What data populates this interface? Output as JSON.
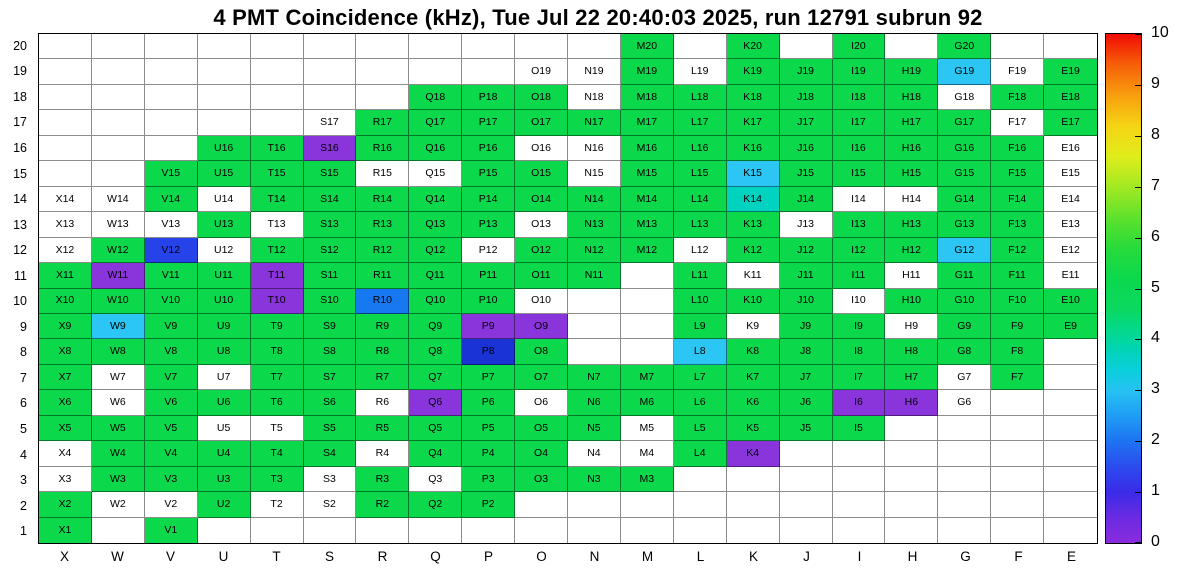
{
  "title": "4 PMT Coincidence (kHz), Tue Jul 22 20:40:03 2025, run 12791 subrun 92",
  "chart_data": {
    "type": "heatmap",
    "title": "4 PMT Coincidence (kHz), Tue Jul 22 20:40:03 2025, run 12791 subrun 92",
    "x_categories": [
      "X",
      "W",
      "V",
      "U",
      "T",
      "S",
      "R",
      "Q",
      "P",
      "O",
      "N",
      "M",
      "L",
      "K",
      "J",
      "I",
      "H",
      "G",
      "F",
      "E"
    ],
    "y_categories": [
      "20",
      "19",
      "18",
      "17",
      "16",
      "15",
      "14",
      "13",
      "12",
      "11",
      "10",
      "9",
      "8",
      "7",
      "6",
      "5",
      "4",
      "3",
      "2",
      "1"
    ],
    "zlim": [
      0,
      10
    ],
    "colorbar_ticks": [
      "10",
      "9",
      "8",
      "7",
      "6",
      "5",
      "4",
      "3",
      "2",
      "1",
      "0"
    ],
    "grid": true,
    "legend_position": "right-colorbar",
    "palette": {
      "g": "#0CD84C",
      "w": "#FFFFFF",
      "c": "#2BC6F4",
      "t": "#00D2C0",
      "lb": "#1779F2",
      "b": "#2543E9",
      "db": "#1A33D4",
      "p": "#8A35DC"
    },
    "palette_value_estimate_khz": {
      "g": 5.0,
      "t": 3.6,
      "c": 2.9,
      "lb": 2.1,
      "b": 1.5,
      "db": 1.2,
      "p": 0.5,
      "w": 0
    },
    "cell_format": "LABEL|color_key (empty string = no channel present)",
    "cells": {
      "20": [
        "",
        "",
        "",
        "",
        "",
        "",
        "",
        "",
        "",
        "",
        "",
        "M20|g",
        "",
        "K20|g",
        "",
        "I20|g",
        "",
        "G20|g",
        "",
        ""
      ],
      "19": [
        "",
        "",
        "",
        "",
        "",
        "",
        "",
        "",
        "",
        "O19|w",
        "N19|w",
        "M19|g",
        "L19|w",
        "K19|g",
        "J19|g",
        "I19|g",
        "H19|g",
        "G19|c",
        "F19|w",
        "E19|g"
      ],
      "18": [
        "",
        "",
        "",
        "",
        "",
        "",
        "",
        "Q18|g",
        "P18|g",
        "O18|g",
        "N18|w",
        "M18|g",
        "L18|g",
        "K18|g",
        "J18|g",
        "I18|g",
        "H18|g",
        "G18|w",
        "F18|g",
        "E18|g"
      ],
      "17": [
        "",
        "",
        "",
        "",
        "",
        "S17|w",
        "R17|g",
        "Q17|g",
        "P17|g",
        "O17|g",
        "N17|g",
        "M17|g",
        "L17|g",
        "K17|g",
        "J17|g",
        "I17|g",
        "H17|g",
        "G17|g",
        "F17|w",
        "E17|g"
      ],
      "16": [
        "",
        "",
        "",
        "U16|g",
        "T16|g",
        "S16|p",
        "R16|g",
        "Q16|g",
        "P16|g",
        "O16|w",
        "N16|w",
        "M16|g",
        "L16|g",
        "K16|g",
        "J16|g",
        "I16|g",
        "H16|g",
        "G16|g",
        "F16|g",
        "E16|w"
      ],
      "15": [
        "",
        "",
        "V15|g",
        "U15|g",
        "T15|g",
        "S15|g",
        "R15|w",
        "Q15|w",
        "P15|g",
        "O15|g",
        "N15|w",
        "M15|g",
        "L15|g",
        "K15|c",
        "J15|g",
        "I15|g",
        "H15|g",
        "G15|g",
        "F15|g",
        "E15|w"
      ],
      "14": [
        "X14|w",
        "W14|w",
        "V14|g",
        "U14|w",
        "T14|g",
        "S14|g",
        "R14|g",
        "Q14|g",
        "P14|g",
        "O14|g",
        "N14|g",
        "M14|g",
        "L14|g",
        "K14|t",
        "J14|g",
        "I14|w",
        "H14|w",
        "G14|g",
        "F14|g",
        "E14|w"
      ],
      "13": [
        "X13|w",
        "W13|w",
        "V13|w",
        "U13|g",
        "T13|w",
        "S13|g",
        "R13|g",
        "Q13|g",
        "P13|g",
        "O13|w",
        "N13|g",
        "M13|g",
        "L13|g",
        "K13|g",
        "J13|w",
        "I13|g",
        "H13|g",
        "G13|g",
        "F13|g",
        "E13|w"
      ],
      "12": [
        "X12|w",
        "W12|g",
        "V12|b",
        "U12|w",
        "T12|g",
        "S12|g",
        "R12|g",
        "Q12|g",
        "P12|w",
        "O12|g",
        "N12|g",
        "M12|g",
        "L12|w",
        "K12|g",
        "J12|g",
        "I12|g",
        "H12|g",
        "G12|c",
        "F12|g",
        "E12|w"
      ],
      "11": [
        "X11|g",
        "W11|p",
        "V11|g",
        "U11|g",
        "T11|p",
        "S11|g",
        "R11|g",
        "Q11|g",
        "P11|g",
        "O11|g",
        "N11|g",
        "",
        "L11|g",
        "K11|w",
        "J11|g",
        "I11|g",
        "H11|w",
        "G11|g",
        "F11|g",
        "E11|w"
      ],
      "10": [
        "X10|g",
        "W10|g",
        "V10|g",
        "U10|g",
        "T10|p",
        "S10|g",
        "R10|lb",
        "Q10|g",
        "P10|g",
        "O10|w",
        "",
        "",
        "L10|g",
        "K10|g",
        "J10|g",
        "I10|w",
        "H10|g",
        "G10|g",
        "F10|g",
        "E10|g"
      ],
      "9": [
        "X9|g",
        "W9|c",
        "V9|g",
        "U9|g",
        "T9|g",
        "S9|g",
        "R9|g",
        "Q9|g",
        "P9|p",
        "O9|p",
        "",
        "",
        "L9|g",
        "K9|w",
        "J9|g",
        "I9|g",
        "H9|w",
        "G9|g",
        "F9|g",
        "E9|g"
      ],
      "8": [
        "X8|g",
        "W8|g",
        "V8|g",
        "U8|g",
        "T8|g",
        "S8|g",
        "R8|g",
        "Q8|g",
        "P8|db",
        "O8|g",
        "",
        "",
        "L8|c",
        "K8|g",
        "J8|g",
        "I8|g",
        "H8|g",
        "G8|g",
        "F8|g",
        ""
      ],
      "7": [
        "X7|g",
        "W7|w",
        "V7|g",
        "U7|w",
        "T7|g",
        "S7|g",
        "R7|g",
        "Q7|g",
        "P7|g",
        "O7|g",
        "N7|g",
        "M7|g",
        "L7|g",
        "K7|g",
        "J7|g",
        "I7|g",
        "H7|g",
        "G7|w",
        "F7|g",
        ""
      ],
      "6": [
        "X6|g",
        "W6|w",
        "V6|g",
        "U6|g",
        "T6|g",
        "S6|g",
        "R6|w",
        "Q6|p",
        "P6|g",
        "O6|w",
        "N6|g",
        "M6|g",
        "L6|g",
        "K6|g",
        "J6|g",
        "I6|p",
        "H6|p",
        "G6|w",
        "",
        ""
      ],
      "5": [
        "X5|g",
        "W5|g",
        "V5|g",
        "U5|w",
        "T5|w",
        "S5|g",
        "R5|g",
        "Q5|g",
        "P5|g",
        "O5|g",
        "N5|g",
        "M5|w",
        "L5|g",
        "K5|g",
        "J5|g",
        "I5|g",
        "",
        "",
        "",
        ""
      ],
      "4": [
        "X4|w",
        "W4|g",
        "V4|g",
        "U4|g",
        "T4|g",
        "S4|g",
        "R4|w",
        "Q4|g",
        "P4|g",
        "O4|g",
        "N4|w",
        "M4|w",
        "L4|g",
        "K4|p",
        "",
        "",
        "",
        "",
        "",
        ""
      ],
      "3": [
        "X3|w",
        "W3|g",
        "V3|g",
        "U3|g",
        "T3|g",
        "S3|w",
        "R3|g",
        "Q3|w",
        "P3|g",
        "O3|g",
        "N3|g",
        "M3|g",
        "",
        "",
        "",
        "",
        "",
        "",
        "",
        ""
      ],
      "2": [
        "X2|g",
        "W2|w",
        "V2|w",
        "U2|g",
        "T2|w",
        "S2|w",
        "R2|g",
        "Q2|g",
        "P2|g",
        "",
        "",
        "",
        "",
        "",
        "",
        "",
        "",
        "",
        "",
        ""
      ],
      "1": [
        "X1|g",
        "",
        "V1|g",
        "",
        "",
        "",
        "",
        "",
        "",
        "",
        "",
        "",
        "",
        "",
        "",
        "",
        "",
        "",
        "",
        ""
      ]
    },
    "colorbar_gradient_bottom_to_top": [
      [
        0.0,
        "#8A2BDE"
      ],
      [
        0.05,
        "#6A2BE2"
      ],
      [
        0.1,
        "#3A2BE8"
      ],
      [
        0.15,
        "#2B4BEE"
      ],
      [
        0.2,
        "#1E74F2"
      ],
      [
        0.25,
        "#1F9DF4"
      ],
      [
        0.3,
        "#26C2F2"
      ],
      [
        0.34,
        "#0ACFDC"
      ],
      [
        0.38,
        "#00D4B4"
      ],
      [
        0.42,
        "#04D989"
      ],
      [
        0.46,
        "#0AD95F"
      ],
      [
        0.52,
        "#0CD84C"
      ],
      [
        0.58,
        "#27DB3A"
      ],
      [
        0.64,
        "#5FE22C"
      ],
      [
        0.7,
        "#A3E922"
      ],
      [
        0.76,
        "#E0ED1B"
      ],
      [
        0.82,
        "#F6D314"
      ],
      [
        0.88,
        "#F89E0E"
      ],
      [
        0.94,
        "#F65F08"
      ],
      [
        1.0,
        "#F20C05"
      ]
    ]
  }
}
